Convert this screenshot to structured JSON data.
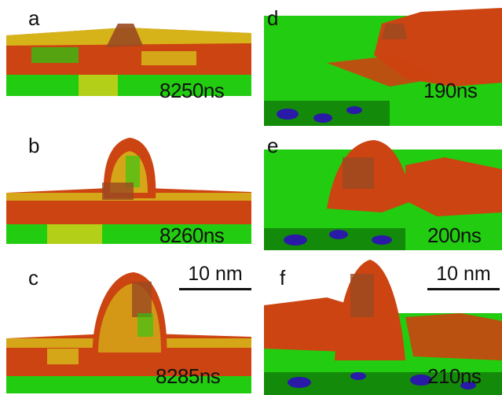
{
  "panels": [
    {
      "letter": "a",
      "time": "8250ns"
    },
    {
      "letter": "b",
      "time": "8260ns"
    },
    {
      "letter": "c",
      "time": "8285ns"
    },
    {
      "letter": "d",
      "time": "190ns"
    },
    {
      "letter": "e",
      "time": "200ns"
    },
    {
      "letter": "f",
      "time": "210ns"
    }
  ],
  "scale_bars": [
    "10 nm",
    "10 nm"
  ],
  "colors": {
    "membrane_green": "#22cc11",
    "lipid_red": "#cc4411",
    "lipid_yellow": "#d8d01a",
    "dark_green": "#148a0a",
    "ion_blue": "#2a1aa8",
    "protein_brown": "#9a4a22"
  }
}
